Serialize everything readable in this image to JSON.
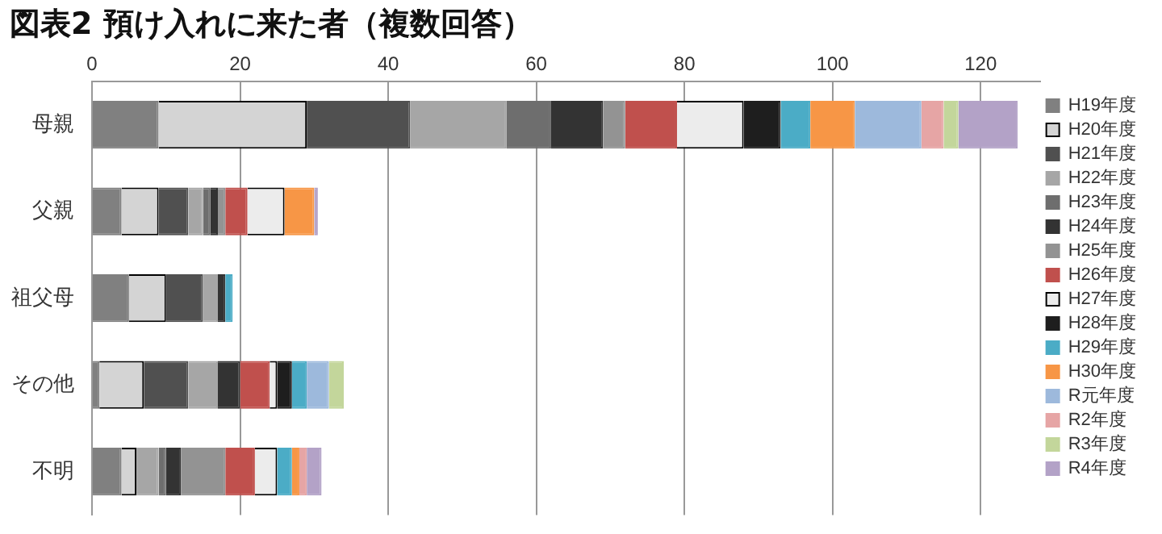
{
  "chart_data": {
    "type": "bar",
    "orientation": "horizontal",
    "stacked": true,
    "title": "図表2 預け入れに来た者（複数回答）",
    "categories": [
      "母親",
      "父親",
      "祖父母",
      "その他",
      "不明"
    ],
    "xlim": [
      0,
      128
    ],
    "xticks": [
      0,
      20,
      40,
      60,
      80,
      100,
      120
    ],
    "grid": "x",
    "legend": "right",
    "series": [
      {
        "name": "H19年度",
        "color": "#808080",
        "values": [
          9,
          4,
          5,
          1,
          4
        ]
      },
      {
        "name": "H20年度",
        "color": "#d4d4d4",
        "values": [
          20,
          5,
          5,
          6,
          2
        ]
      },
      {
        "name": "H21年度",
        "color": "#505050",
        "values": [
          14,
          4,
          5,
          6,
          0
        ]
      },
      {
        "name": "H22年度",
        "color": "#a6a6a6",
        "values": [
          13,
          2,
          2,
          4,
          3
        ]
      },
      {
        "name": "H23年度",
        "color": "#6e6e6e",
        "values": [
          6,
          1,
          0,
          0,
          1
        ]
      },
      {
        "name": "H24年度",
        "color": "#333333",
        "values": [
          7,
          1,
          1,
          3,
          2
        ]
      },
      {
        "name": "H25年度",
        "color": "#939393",
        "values": [
          3,
          1,
          0,
          0,
          6
        ]
      },
      {
        "name": "H26年度",
        "color": "#c0504d",
        "values": [
          7,
          3,
          0,
          4,
          4
        ]
      },
      {
        "name": "H27年度",
        "color": "#ececec",
        "values": [
          9,
          5,
          0,
          1,
          3
        ]
      },
      {
        "name": "H28年度",
        "color": "#1e1e1e",
        "values": [
          5,
          0,
          0,
          2,
          0
        ]
      },
      {
        "name": "H29年度",
        "color": "#4bacc6",
        "values": [
          4,
          0,
          1,
          2,
          2
        ]
      },
      {
        "name": "H30年度",
        "color": "#f79646",
        "values": [
          6,
          4,
          0,
          0,
          1
        ]
      },
      {
        "name": "R元年度",
        "color": "#9db9dc",
        "values": [
          9,
          0,
          0,
          3,
          0
        ]
      },
      {
        "name": "R2年度",
        "color": "#e6a5a5",
        "values": [
          3,
          0,
          0,
          0,
          1
        ]
      },
      {
        "name": "R3年度",
        "color": "#c3d69b",
        "values": [
          2,
          0,
          0,
          2,
          0
        ]
      },
      {
        "name": "R4年度",
        "color": "#b3a2c7",
        "values": [
          8,
          0.5,
          0,
          0,
          2
        ]
      }
    ]
  }
}
